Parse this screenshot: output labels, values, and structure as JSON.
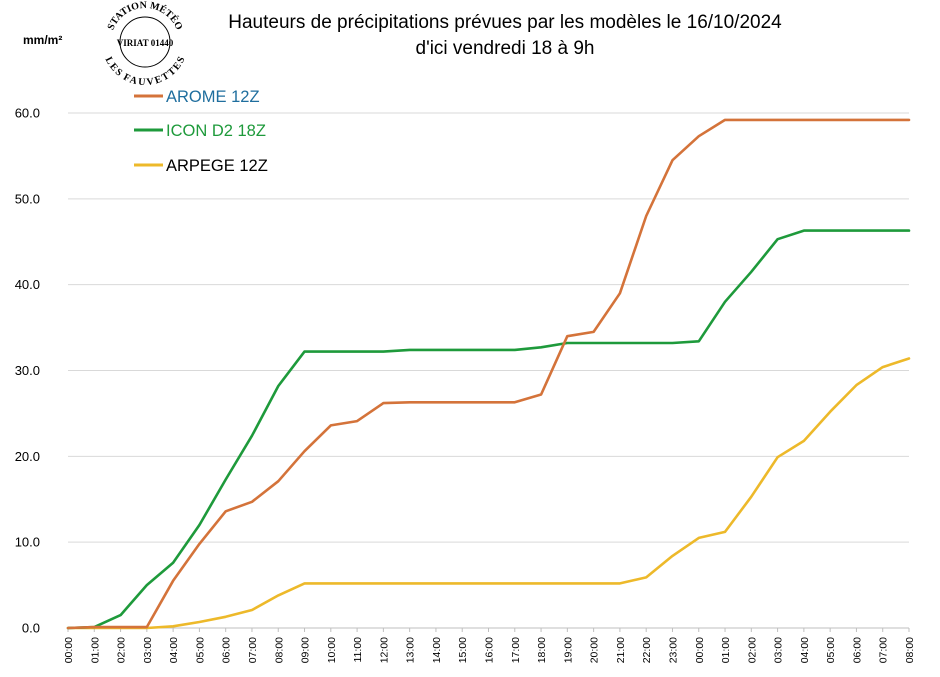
{
  "title_line1": "Hauteurs de précipitations  prévues par les modèles le 16/10/2024",
  "title_line2": "d'ici vendredi 18 à 9h",
  "stamp": {
    "top_text": "STATION MÉTÉO",
    "center_text": "VIRIAT 01440",
    "bottom_text": "LES FAUVETTES"
  },
  "colors": {
    "arome": "#D4733A",
    "icon": "#1E9A3B",
    "arpege": "#EDB92A",
    "arome_label": "#1F6E9E",
    "gridline": "#D9D9D9",
    "axis": "#BFBFBF"
  },
  "chart_data": {
    "type": "line",
    "title": "Hauteurs de précipitations  prévues par les modèles le 16/10/2024 d'ici vendredi 18 à 9h",
    "ylabel": "mm/m²",
    "xlabel": "",
    "ylim": [
      0,
      60
    ],
    "yticks": [
      "0.0",
      "10.0",
      "20.0",
      "30.0",
      "40.0",
      "50.0",
      "60.0"
    ],
    "grid": "horizontal",
    "legend_position": "top-left",
    "categories": [
      "00:00",
      "01:00",
      "02:00",
      "03:00",
      "04:00",
      "05:00",
      "06:00",
      "07:00",
      "08:00",
      "09:00",
      "10:00",
      "11:00",
      "12:00",
      "13:00",
      "14:00",
      "15:00",
      "16:00",
      "17:00",
      "18:00",
      "19:00",
      "20:00",
      "21:00",
      "22:00",
      "23:00",
      "00:00",
      "01:00",
      "02:00",
      "03:00",
      "04:00",
      "05:00",
      "06:00",
      "07:00",
      "08:00"
    ],
    "series": [
      {
        "name": "AROME 12Z",
        "color_key": "arome",
        "values": [
          0,
          0.1,
          0.1,
          0.1,
          5.5,
          9.8,
          13.6,
          14.7,
          17.1,
          20.6,
          23.6,
          24.1,
          26.2,
          26.3,
          26.3,
          26.3,
          26.3,
          26.3,
          27.2,
          34.0,
          34.5,
          39.0,
          48.0,
          54.5,
          57.3,
          59.2,
          59.2,
          59.2,
          59.2,
          59.2,
          59.2,
          59.2,
          59.2
        ]
      },
      {
        "name": "ICON D2 18Z",
        "color_key": "icon",
        "values": [
          0,
          0.1,
          1.5,
          5.0,
          7.6,
          12.0,
          17.3,
          22.4,
          28.2,
          32.2,
          32.2,
          32.2,
          32.2,
          32.4,
          32.4,
          32.4,
          32.4,
          32.4,
          32.7,
          33.2,
          33.2,
          33.2,
          33.2,
          33.2,
          33.4,
          38.0,
          41.5,
          45.3,
          46.3,
          46.3,
          46.3,
          46.3,
          46.3
        ]
      },
      {
        "name": "ARPEGE 12Z",
        "color_key": "arpege",
        "values": [
          0,
          0,
          0,
          0,
          0.2,
          0.7,
          1.3,
          2.1,
          3.8,
          5.2,
          5.2,
          5.2,
          5.2,
          5.2,
          5.2,
          5.2,
          5.2,
          5.2,
          5.2,
          5.2,
          5.2,
          5.2,
          5.9,
          8.4,
          10.5,
          11.2,
          15.3,
          19.9,
          21.8,
          25.2,
          28.3,
          30.4,
          31.4
        ]
      }
    ]
  }
}
